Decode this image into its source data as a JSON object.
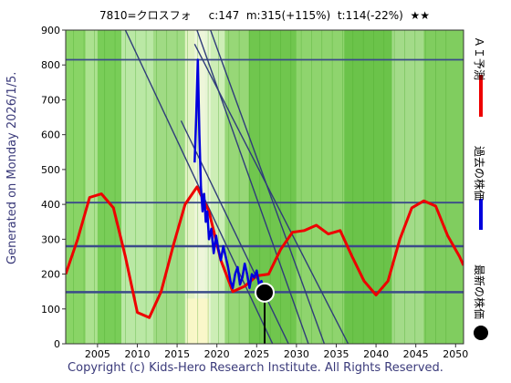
{
  "header": {
    "title": "7810=クロスフォ     c:147  m:315(+115%)  t:114(-22%)  ★★"
  },
  "side_note": "Generated on Monday 2026/1/5.",
  "footer": "Copyright (c) Kids-Hero Research Institute. All Rights Reserved.",
  "legend": [
    {
      "label": "ＡＩ予測",
      "color": "#ee0000"
    },
    {
      "label": "過去の株価",
      "color": "#0000dd"
    },
    {
      "label": "最新の株価",
      "color": "#000000"
    }
  ],
  "chart_data": {
    "type": "line",
    "xlim": [
      2001,
      2051
    ],
    "ylim": [
      0,
      900
    ],
    "x_ticks": [
      2005,
      2010,
      2015,
      2020,
      2025,
      2030,
      2035,
      2040,
      2045,
      2050
    ],
    "y_ticks": [
      0,
      100,
      200,
      300,
      400,
      500,
      600,
      700,
      800,
      900
    ],
    "hlines": [
      815,
      405,
      280,
      148
    ],
    "trend_lines": [
      [
        [
          2017.5,
          900
        ],
        [
          2031.5,
          0
        ]
      ],
      [
        [
          2019.2,
          900
        ],
        [
          2033.5,
          0
        ]
      ],
      [
        [
          2017.2,
          860
        ],
        [
          2036.5,
          0
        ]
      ],
      [
        [
          2015.5,
          640
        ],
        [
          2029.0,
          0
        ]
      ],
      [
        [
          2008.5,
          900
        ],
        [
          2027.0,
          0
        ]
      ]
    ],
    "series": [
      {
        "name": "ＡＩ予測",
        "color": "#ee0000",
        "x": [
          2001,
          2002.5,
          2004,
          2005.5,
          2007,
          2008.5,
          2010,
          2011.5,
          2013,
          2014.5,
          2016,
          2017.5,
          2019,
          2020.5,
          2022,
          2023.5,
          2025,
          2026.5,
          2028,
          2029.5,
          2031,
          2032.5,
          2034,
          2035.5,
          2037,
          2038.5,
          2040,
          2041.5,
          2043,
          2044.5,
          2046,
          2047.5,
          2049,
          2050.5,
          2051
        ],
        "values": [
          200,
          300,
          420,
          430,
          390,
          250,
          90,
          75,
          150,
          280,
          400,
          450,
          380,
          240,
          150,
          165,
          195,
          200,
          270,
          320,
          325,
          340,
          315,
          325,
          250,
          180,
          140,
          180,
          300,
          390,
          410,
          395,
          310,
          250,
          225
        ]
      },
      {
        "name": "過去の株価",
        "color": "#0000dd",
        "x": [
          2017.2,
          2017.4,
          2017.6,
          2017.8,
          2018.0,
          2018.2,
          2018.4,
          2018.6,
          2018.8,
          2019.0,
          2019.3,
          2019.6,
          2019.9,
          2020.2,
          2020.5,
          2020.8,
          2021.1,
          2021.4,
          2021.7,
          2022.0,
          2022.3,
          2022.6,
          2022.9,
          2023.2,
          2023.5,
          2023.8,
          2024.1,
          2024.4,
          2024.7,
          2025.0,
          2025.3,
          2025.6,
          2025.9
        ],
        "values": [
          520,
          650,
          815,
          600,
          450,
          380,
          430,
          350,
          380,
          300,
          330,
          260,
          310,
          270,
          240,
          280,
          250,
          220,
          180,
          160,
          200,
          220,
          170,
          190,
          230,
          200,
          160,
          200,
          190,
          210,
          170,
          180,
          150
        ]
      }
    ],
    "latest_point": {
      "x": 2026.0,
      "y": 147
    }
  }
}
